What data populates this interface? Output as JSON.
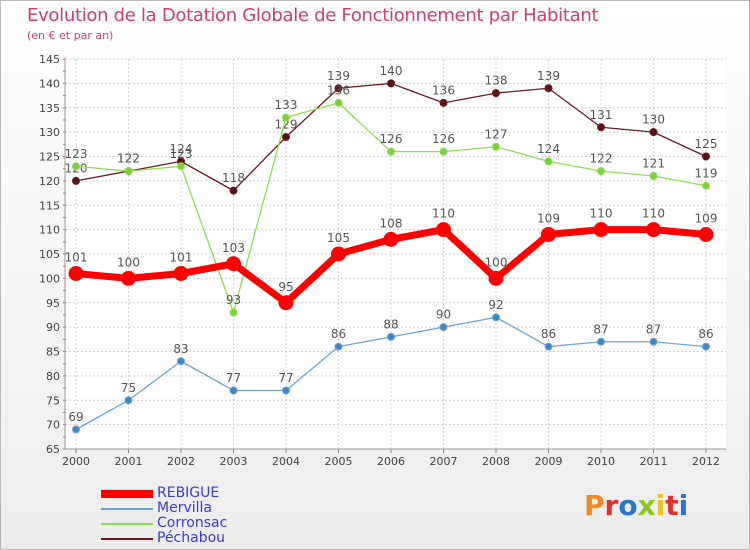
{
  "title": "Evolution de la Dotation Globale de Fonctionnement par Habitant",
  "subtitle": "(en € et par an)",
  "logo": {
    "text": "Proxiti",
    "colors": [
      "#f08a1c",
      "#e2302a",
      "#2b74c8",
      "#8fc421",
      "#f0c419",
      "#e2302a",
      "#2b74c8"
    ]
  },
  "chart_data": {
    "type": "line",
    "x": [
      "2000",
      "2001",
      "2002",
      "2003",
      "2004",
      "2005",
      "2006",
      "2007",
      "2008",
      "2009",
      "2010",
      "2011",
      "2012"
    ],
    "ylim": [
      65,
      145
    ],
    "yticks": [
      65,
      70,
      75,
      80,
      85,
      90,
      95,
      100,
      105,
      110,
      115,
      120,
      125,
      130,
      135,
      140,
      145
    ],
    "grid": true,
    "legend_position": "bottom-left",
    "series": [
      {
        "name": "Péchabou",
        "color": "#6b1d24",
        "marker_color": "#5a1418",
        "label_color": "#555555",
        "width": 1.3,
        "marker_r": 3.5,
        "values": [
          120,
          122,
          124,
          118,
          129,
          139,
          140,
          136,
          138,
          139,
          131,
          130,
          125
        ]
      },
      {
        "name": "Corronsac",
        "color": "#8fdc55",
        "marker_color": "#7ccf3a",
        "label_color": "#555555",
        "width": 1.3,
        "marker_r": 3.5,
        "values": [
          123,
          122,
          123,
          93,
          133,
          136,
          126,
          126,
          127,
          124,
          122,
          121,
          119
        ]
      },
      {
        "name": "Mervilla",
        "color": "#6fa3d3",
        "marker_color": "#3f84c4",
        "label_color": "#555555",
        "width": 1.3,
        "marker_r": 3.5,
        "values": [
          69,
          75,
          83,
          77,
          77,
          86,
          88,
          90,
          92,
          86,
          87,
          87,
          86
        ]
      },
      {
        "name": "REBIGUE",
        "color": "#ff0000",
        "marker_color": "#ff0000",
        "label_color": "#555555",
        "width": 7,
        "marker_r": 7,
        "values": [
          101,
          100,
          101,
          103,
          95,
          105,
          108,
          110,
          100,
          109,
          110,
          110,
          109
        ]
      }
    ],
    "legend": [
      {
        "name": "REBIGUE",
        "color": "#ff0000",
        "text_color": "#3b3bd6"
      },
      {
        "name": "Mervilla",
        "color": "#6fa3d3",
        "text_color": "#3b3bd6"
      },
      {
        "name": "Corronsac",
        "color": "#8fdc55",
        "text_color": "#3b3bd6"
      },
      {
        "name": "Péchabou",
        "color": "#6b1d24",
        "text_color": "#3b3bd6"
      }
    ]
  }
}
